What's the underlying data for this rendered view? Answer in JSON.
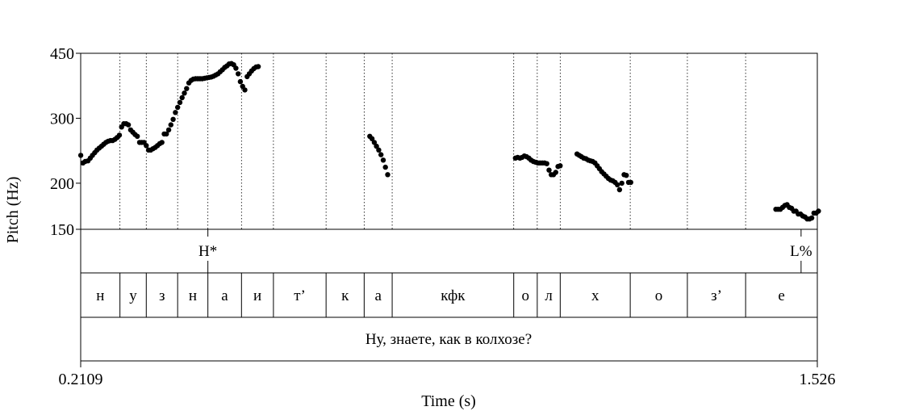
{
  "chart_data": {
    "type": "scatter",
    "xlabel": "Time (s)",
    "ylabel": "Pitch (Hz)",
    "x_tick_labels": [
      "0.2109",
      "1.526"
    ],
    "xlim": [
      0.2109,
      1.526
    ],
    "y_tick_labels": [
      "450",
      "300",
      "200",
      "150"
    ],
    "y_ticks": [
      450,
      300,
      200,
      150
    ],
    "ylim": [
      150,
      450
    ],
    "y_scale": "log",
    "grid": "dotted vertical lines at segment boundaries",
    "series": [
      {
        "points": [
          [
            0.211,
            238
          ],
          [
            0.215,
            227
          ],
          [
            0.219,
            229
          ],
          [
            0.224,
            230
          ],
          [
            0.228,
            234
          ],
          [
            0.232,
            238
          ],
          [
            0.236,
            242
          ],
          [
            0.24,
            246
          ],
          [
            0.244,
            249
          ],
          [
            0.248,
            252
          ],
          [
            0.252,
            255
          ],
          [
            0.256,
            258
          ],
          [
            0.26,
            260
          ],
          [
            0.264,
            261
          ],
          [
            0.268,
            261
          ],
          [
            0.272,
            263
          ],
          [
            0.276,
            266
          ],
          [
            0.28,
            270
          ],
          [
            0.284,
            284
          ],
          [
            0.288,
            290
          ],
          [
            0.292,
            290
          ],
          [
            0.296,
            288
          ],
          [
            0.3,
            279
          ],
          [
            0.304,
            275
          ],
          [
            0.308,
            271
          ],
          [
            0.312,
            268
          ],
          [
            0.316,
            258
          ],
          [
            0.32,
            258
          ],
          [
            0.324,
            258
          ],
          [
            0.328,
            253
          ],
          [
            0.332,
            246
          ],
          [
            0.336,
            246
          ],
          [
            0.34,
            248
          ],
          [
            0.344,
            250
          ],
          [
            0.348,
            253
          ],
          [
            0.352,
            256
          ],
          [
            0.356,
            258
          ],
          [
            0.36,
            272
          ],
          [
            0.364,
            272
          ],
          [
            0.368,
            279
          ],
          [
            0.372,
            288
          ],
          [
            0.376,
            298
          ],
          [
            0.38,
            311
          ],
          [
            0.384,
            321
          ],
          [
            0.388,
            331
          ],
          [
            0.392,
            341
          ],
          [
            0.396,
            351
          ],
          [
            0.4,
            361
          ],
          [
            0.404,
            374
          ],
          [
            0.408,
            380
          ],
          [
            0.412,
            383
          ],
          [
            0.416,
            384
          ],
          [
            0.42,
            384
          ],
          [
            0.424,
            384
          ],
          [
            0.428,
            384
          ],
          [
            0.432,
            385
          ],
          [
            0.436,
            386
          ],
          [
            0.44,
            387
          ],
          [
            0.444,
            388
          ],
          [
            0.448,
            390
          ],
          [
            0.452,
            393
          ],
          [
            0.456,
            396
          ],
          [
            0.46,
            401
          ],
          [
            0.464,
            406
          ],
          [
            0.468,
            412
          ],
          [
            0.472,
            416
          ],
          [
            0.476,
            421
          ],
          [
            0.48,
            422
          ],
          [
            0.484,
            419
          ],
          [
            0.488,
            410
          ],
          [
            0.492,
            396
          ],
          [
            0.496,
            377
          ],
          [
            0.5,
            366
          ],
          [
            0.504,
            358
          ],
          [
            0.508,
            389
          ],
          [
            0.512,
            396
          ],
          [
            0.516,
            403
          ],
          [
            0.52,
            409
          ],
          [
            0.524,
            413
          ],
          [
            0.528,
            414
          ],
          [
            0.727,
            268
          ],
          [
            0.731,
            264
          ],
          [
            0.735,
            258
          ],
          [
            0.739,
            252
          ],
          [
            0.743,
            246
          ],
          [
            0.747,
            239
          ],
          [
            0.751,
            231
          ],
          [
            0.755,
            221
          ],
          [
            0.759,
            211
          ],
          [
            0.987,
            234
          ],
          [
            0.991,
            235
          ],
          [
            0.995,
            234
          ],
          [
            0.999,
            235
          ],
          [
            1.003,
            237
          ],
          [
            1.007,
            236
          ],
          [
            1.011,
            234
          ],
          [
            1.015,
            231
          ],
          [
            1.019,
            229
          ],
          [
            1.023,
            228
          ],
          [
            1.027,
            227
          ],
          [
            1.031,
            227
          ],
          [
            1.035,
            227
          ],
          [
            1.039,
            227
          ],
          [
            1.043,
            226
          ],
          [
            1.047,
            217
          ],
          [
            1.051,
            211
          ],
          [
            1.055,
            211
          ],
          [
            1.059,
            214
          ],
          [
            1.063,
            222
          ],
          [
            1.067,
            223
          ],
          [
            1.097,
            240
          ],
          [
            1.101,
            238
          ],
          [
            1.105,
            236
          ],
          [
            1.109,
            234
          ],
          [
            1.113,
            233
          ],
          [
            1.117,
            231
          ],
          [
            1.121,
            230
          ],
          [
            1.125,
            229
          ],
          [
            1.129,
            227
          ],
          [
            1.133,
            223
          ],
          [
            1.137,
            219
          ],
          [
            1.141,
            215
          ],
          [
            1.145,
            212
          ],
          [
            1.149,
            209
          ],
          [
            1.153,
            206
          ],
          [
            1.157,
            204
          ],
          [
            1.161,
            203
          ],
          [
            1.165,
            201
          ],
          [
            1.169,
            198
          ],
          [
            1.173,
            192
          ],
          [
            1.177,
            200
          ],
          [
            1.181,
            211
          ],
          [
            1.185,
            210
          ],
          [
            1.189,
            201
          ],
          [
            1.193,
            201
          ],
          [
            1.452,
            170
          ],
          [
            1.456,
            170
          ],
          [
            1.46,
            170
          ],
          [
            1.464,
            172
          ],
          [
            1.468,
            174
          ],
          [
            1.472,
            175
          ],
          [
            1.476,
            172
          ],
          [
            1.48,
            171
          ],
          [
            1.484,
            168
          ],
          [
            1.488,
            168
          ],
          [
            1.492,
            165
          ],
          [
            1.496,
            165
          ],
          [
            1.5,
            163
          ],
          [
            1.504,
            162
          ],
          [
            1.508,
            160
          ],
          [
            1.512,
            160
          ],
          [
            1.516,
            161
          ],
          [
            1.52,
            166
          ],
          [
            1.524,
            166
          ],
          [
            1.528,
            168
          ]
        ]
      }
    ]
  },
  "tones": [
    {
      "label": "H*",
      "time": 0.438
    },
    {
      "label": "L%",
      "time": 1.497
    }
  ],
  "segments": [
    {
      "label": "н",
      "start": 0.2109,
      "end": 0.281
    },
    {
      "label": "у",
      "start": 0.281,
      "end": 0.328
    },
    {
      "label": "з",
      "start": 0.328,
      "end": 0.384
    },
    {
      "label": "н",
      "start": 0.384,
      "end": 0.438
    },
    {
      "label": "а",
      "start": 0.438,
      "end": 0.498
    },
    {
      "label": "и",
      "start": 0.498,
      "end": 0.555
    },
    {
      "label": "т’",
      "start": 0.555,
      "end": 0.649
    },
    {
      "label": "к",
      "start": 0.649,
      "end": 0.717
    },
    {
      "label": "а",
      "start": 0.717,
      "end": 0.767
    },
    {
      "label": "кфк",
      "start": 0.767,
      "end": 0.984
    },
    {
      "label": "о",
      "start": 0.984,
      "end": 1.026
    },
    {
      "label": "л",
      "start": 1.026,
      "end": 1.067
    },
    {
      "label": "х",
      "start": 1.067,
      "end": 1.192
    },
    {
      "label": "о",
      "start": 1.192,
      "end": 1.294
    },
    {
      "label": "з’",
      "start": 1.294,
      "end": 1.398
    },
    {
      "label": "е",
      "start": 1.398,
      "end": 1.526
    }
  ],
  "sentence": "Ну, знаете, как в колхозе?"
}
